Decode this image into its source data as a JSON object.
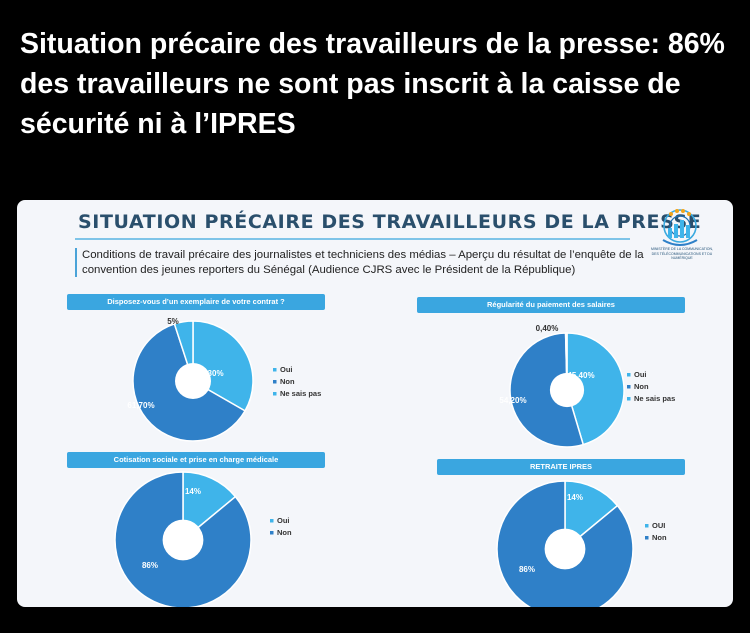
{
  "headline": "Situation précaire des travailleurs de la presse: 86% des travailleurs ne sont pas inscrit à la caisse de sécurité ni à l’IPRES",
  "slide": {
    "title": "SITUATION PRÉCAIRE DES TRAVAILLEURS DE LA PRESSE",
    "subtitle": "Conditions de travail précaire des journalistes et techniciens des médias – Aperçu du résultat de l’enquête de la convention des jeunes reporters du Sénégal (Audience CJRS avec le Président de la République)",
    "logo_text": "MINISTÈRE DE LA COMMUNICATION, DES TÉLÉCOMMUNICATIONS ET DU NUMÉRIQUE"
  },
  "colors": {
    "light": "#3fb4ea",
    "dark": "#2f80c8",
    "accent": "#3aa6e0"
  },
  "chart_data": [
    {
      "type": "pie",
      "title": "Disposez-vous d’un exemplaire de votre contrat ?",
      "categories": [
        "Oui",
        "Non",
        "Ne sais pas"
      ],
      "values": [
        33.3,
        61.7,
        5
      ],
      "labels": [
        "33,30%",
        "61,70%",
        "5%"
      ],
      "legend": "right"
    },
    {
      "type": "pie",
      "title": "Régularité du paiement des salaires",
      "categories": [
        "Oui",
        "Non",
        "Ne sais pas"
      ],
      "values": [
        45.4,
        54.2,
        0.4
      ],
      "labels": [
        "45,40%",
        "54,20%",
        "0,40%"
      ],
      "legend": "right"
    },
    {
      "type": "pie",
      "title": "Cotisation sociale et prise en charge médicale",
      "categories": [
        "Oui",
        "Non"
      ],
      "values": [
        14,
        86
      ],
      "labels": [
        "14%",
        "86%"
      ],
      "legend": "right"
    },
    {
      "type": "pie",
      "title": "RETRAITE IPRES",
      "categories": [
        "OUI",
        "Non"
      ],
      "values": [
        14,
        86
      ],
      "labels": [
        "14%",
        "86%"
      ],
      "legend": "right"
    }
  ]
}
